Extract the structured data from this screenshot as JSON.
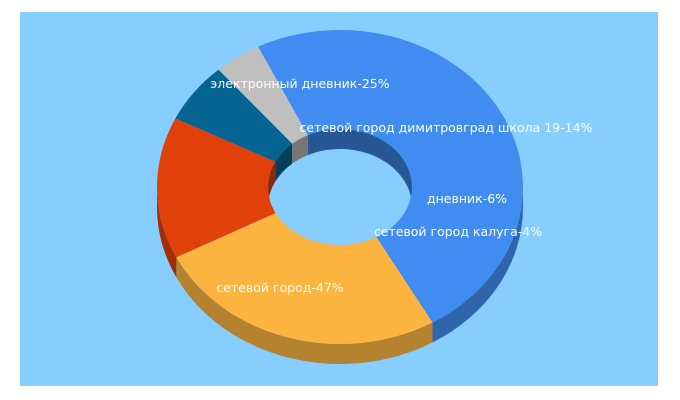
{
  "chart_data": {
    "type": "pie",
    "style": "3d-donut",
    "title": "",
    "background": "#87ceff",
    "slices": [
      {
        "label": "сетевой город",
        "value": 47,
        "display": "сетевой город-47%",
        "color": "#418cf0"
      },
      {
        "label": "электронный дневник",
        "value": 25,
        "display": "электронный дневник-25%",
        "color": "#fcb441"
      },
      {
        "label": "сетевой город димитровград школа 19",
        "value": 14,
        "display": "сетевой город димитровград школа 19-14%",
        "color": "#e0400a"
      },
      {
        "label": "дневник",
        "value": 6,
        "display": "дневник-6%",
        "color": "#056492"
      },
      {
        "label": "сетевой город калуга",
        "value": 4,
        "display": "сетевой город калуга-4%",
        "color": "#bfbfbf"
      }
    ]
  }
}
